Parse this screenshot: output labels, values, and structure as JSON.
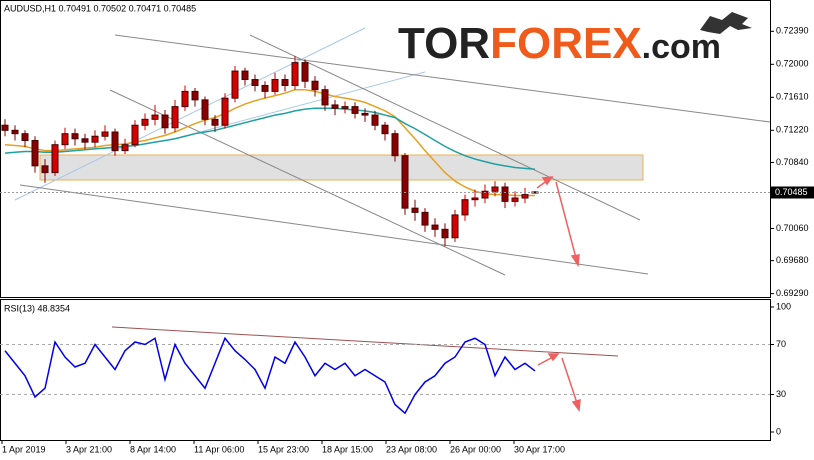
{
  "watermark": [
    "TOR",
    "FOREX",
    ".com"
  ],
  "chart_data": [
    {
      "type": "candlestick",
      "title": "AUDUSD,H1 0.70491 0.70502 0.70471 0.70485",
      "up_color": "#d40000",
      "down_color": "#8a0000",
      "open": [
        0.7128,
        0.7122,
        0.7118,
        0.711,
        0.708,
        0.7072,
        0.7105,
        0.7118,
        0.7112,
        0.7108,
        0.7115,
        0.712,
        0.7098,
        0.7105,
        0.7128,
        0.7135,
        0.714,
        0.7125,
        0.715,
        0.7168,
        0.7158,
        0.7135,
        0.7128,
        0.716,
        0.7192,
        0.7182,
        0.7175,
        0.7168,
        0.7182,
        0.7175,
        0.7202,
        0.718,
        0.717,
        0.7152,
        0.7148,
        0.715,
        0.7142,
        0.714,
        0.7128,
        0.7118,
        0.7092,
        0.703,
        0.7025,
        0.701,
        0.7005,
        0.6995,
        0.7022,
        0.704,
        0.7042,
        0.705,
        0.7055,
        0.7038,
        0.7042,
        0.70491
      ],
      "high": [
        0.7135,
        0.7128,
        0.7122,
        0.7115,
        0.7088,
        0.711,
        0.7125,
        0.7124,
        0.7118,
        0.7122,
        0.7128,
        0.7124,
        0.7112,
        0.7134,
        0.7142,
        0.7152,
        0.7146,
        0.7158,
        0.7175,
        0.7172,
        0.7162,
        0.714,
        0.7166,
        0.7198,
        0.7196,
        0.7188,
        0.718,
        0.719,
        0.7188,
        0.721,
        0.7206,
        0.7186,
        0.7175,
        0.7158,
        0.7156,
        0.7155,
        0.7148,
        0.7145,
        0.7132,
        0.7122,
        0.7095,
        0.704,
        0.703,
        0.7018,
        0.7012,
        0.7028,
        0.7046,
        0.7052,
        0.7058,
        0.7062,
        0.706,
        0.705,
        0.7054,
        0.70502
      ],
      "low": [
        0.7115,
        0.711,
        0.7102,
        0.7072,
        0.706,
        0.7068,
        0.71,
        0.7104,
        0.71,
        0.7102,
        0.711,
        0.7092,
        0.7094,
        0.7102,
        0.7122,
        0.7128,
        0.7118,
        0.712,
        0.7145,
        0.715,
        0.7128,
        0.712,
        0.7124,
        0.7155,
        0.7175,
        0.7168,
        0.716,
        0.7164,
        0.7168,
        0.717,
        0.7172,
        0.7162,
        0.7145,
        0.714,
        0.7142,
        0.7136,
        0.7132,
        0.7122,
        0.711,
        0.7085,
        0.7022,
        0.7015,
        0.7002,
        0.6996,
        0.6985,
        0.699,
        0.7015,
        0.7032,
        0.7036,
        0.7044,
        0.703,
        0.7032,
        0.7036,
        0.70471
      ],
      "close": [
        0.7122,
        0.7118,
        0.711,
        0.708,
        0.7072,
        0.7105,
        0.7118,
        0.7112,
        0.7108,
        0.7115,
        0.712,
        0.7098,
        0.7105,
        0.7128,
        0.7135,
        0.714,
        0.7125,
        0.715,
        0.7168,
        0.7158,
        0.7135,
        0.7128,
        0.716,
        0.7192,
        0.7182,
        0.7175,
        0.7168,
        0.7182,
        0.7175,
        0.7202,
        0.718,
        0.717,
        0.7152,
        0.7148,
        0.715,
        0.7142,
        0.714,
        0.7128,
        0.7118,
        0.7092,
        0.703,
        0.7025,
        0.701,
        0.7005,
        0.6995,
        0.7022,
        0.704,
        0.7042,
        0.705,
        0.7055,
        0.7038,
        0.7042,
        0.7046,
        0.70485
      ],
      "series": [
        {
          "color": "#e8a020",
          "values": [
            0.7105,
            0.7104,
            0.7103,
            0.71,
            0.7098,
            0.7098,
            0.7099,
            0.71,
            0.7101,
            0.7102,
            0.7104,
            0.7105,
            0.7106,
            0.7108,
            0.711,
            0.7113,
            0.7116,
            0.712,
            0.7125,
            0.713,
            0.7134,
            0.7137,
            0.7142,
            0.7148,
            0.7153,
            0.7157,
            0.716,
            0.7163,
            0.7166,
            0.717,
            0.717,
            0.7168,
            0.7165,
            0.7162,
            0.716,
            0.7158,
            0.7155,
            0.715,
            0.7145,
            0.7138,
            0.7125,
            0.7112,
            0.7098,
            0.7085,
            0.7072,
            0.7062,
            0.7055,
            0.705,
            0.7047,
            0.7046,
            0.7046,
            0.7045,
            0.7045,
            0.7045
          ]
        },
        {
          "color": "#20a0a0",
          "values": [
            0.7095,
            0.7096,
            0.7097,
            0.7097,
            0.7096,
            0.7096,
            0.7097,
            0.7098,
            0.7099,
            0.71,
            0.7101,
            0.7102,
            0.7103,
            0.7104,
            0.7106,
            0.7108,
            0.711,
            0.7112,
            0.7115,
            0.7118,
            0.712,
            0.7122,
            0.7125,
            0.7128,
            0.7131,
            0.7134,
            0.7137,
            0.714,
            0.7142,
            0.7145,
            0.7147,
            0.7148,
            0.7148,
            0.7148,
            0.7147,
            0.7146,
            0.7145,
            0.7143,
            0.714,
            0.7137,
            0.713,
            0.7124,
            0.7117,
            0.711,
            0.7103,
            0.7097,
            0.7092,
            0.7088,
            0.7085,
            0.7082,
            0.708,
            0.7078,
            0.7077,
            0.7076
          ]
        }
      ],
      "ylim": [
        0.6925,
        0.7276
      ],
      "yticks": [
        {
          "value": 0.7239,
          "label": "0.72390"
        },
        {
          "value": 0.72,
          "label": "0.72000"
        },
        {
          "value": 0.7161,
          "label": "0.71610"
        },
        {
          "value": 0.7122,
          "label": "0.71220"
        },
        {
          "value": 0.7084,
          "label": "0.70840"
        },
        {
          "value": 0.7006,
          "label": "0.70060"
        },
        {
          "value": 0.6968,
          "label": "0.69680"
        },
        {
          "value": 0.6929,
          "label": "0.69290"
        }
      ],
      "last_price": {
        "value": 0.70485,
        "label": "0.70485"
      }
    },
    {
      "type": "line",
      "title": "RSI(13) 48.8354",
      "color": "#0000ee",
      "values": [
        65,
        55,
        45,
        28,
        35,
        72,
        60,
        52,
        55,
        70,
        60,
        50,
        65,
        72,
        70,
        75,
        42,
        70,
        55,
        45,
        35,
        55,
        75,
        65,
        58,
        50,
        35,
        60,
        55,
        72,
        60,
        45,
        55,
        50,
        55,
        45,
        50,
        45,
        40,
        22,
        15,
        30,
        40,
        45,
        55,
        60,
        72,
        75,
        70,
        45,
        60,
        50,
        55,
        48.8354
      ],
      "ylim": [
        -6.4,
        106.4
      ],
      "yticks": [
        0,
        30,
        70,
        100
      ],
      "x_tick_labels": [
        "1 Apr 2019",
        "3 Apr 21:00",
        "8 Apr 14:00",
        "11 Apr 06:00",
        "15 Apr 23:00",
        "18 Apr 15:00",
        "23 Apr 08:00",
        "26 Apr 00:00",
        "30 Apr 17:00"
      ]
    }
  ]
}
